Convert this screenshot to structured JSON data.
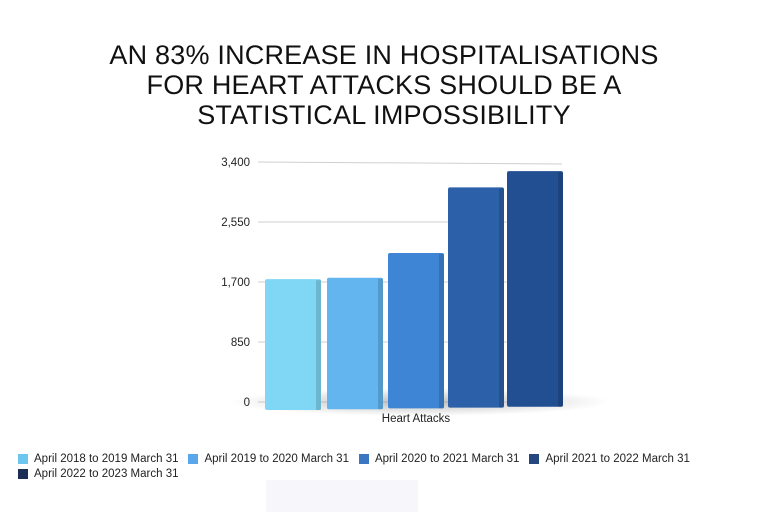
{
  "title_lines": [
    "AN 83% INCREASE IN HOSPITALISATIONS",
    "FOR HEART ATTACKS SHOULD BE A",
    "STATISTICAL IMPOSSIBILITY"
  ],
  "chart_data": {
    "type": "bar",
    "style": "3d",
    "categories": [
      "Heart Attacks"
    ],
    "xlabel": "Heart Attacks",
    "ylabel": "",
    "ylim": [
      0,
      3400
    ],
    "yticks": [
      0,
      850,
      1700,
      2550,
      3400
    ],
    "ytick_labels": [
      "0",
      "850",
      "1,700",
      "2,550",
      "3,400"
    ],
    "grid": true,
    "legend_placement": "bottom",
    "series": [
      {
        "name": "April 2018 to 2019 March 31",
        "values": [
          1740
        ],
        "color": "#7fd6f5",
        "legend_color": "#6cc6f0"
      },
      {
        "name": "April 2019 to 2020 March 31",
        "values": [
          1760
        ],
        "color": "#62b5ef",
        "legend_color": "#5aa6ea"
      },
      {
        "name": "April 2020 to 2021 March 31",
        "values": [
          2110
        ],
        "color": "#3f85d5",
        "legend_color": "#3b76c2"
      },
      {
        "name": "April 2021 to 2022 March 31",
        "values": [
          3040
        ],
        "color": "#2c60a9",
        "legend_color": "#26467f"
      },
      {
        "name": "April 2022 to 2023 March 31",
        "values": [
          3270
        ],
        "color": "#214f92",
        "legend_color": "#1c2d56"
      }
    ]
  }
}
